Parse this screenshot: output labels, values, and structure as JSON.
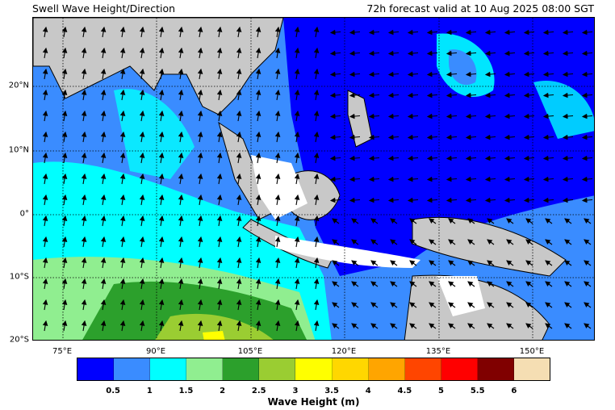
{
  "title": "Swell Wave Height/Direction",
  "valid_time": "72h forecast valid at 10 Aug 2025 08:00 SGT",
  "lat_labels": [
    "20°N",
    "10°N",
    "0°",
    "10°S",
    "20°S"
  ],
  "lon_labels": [
    "75°E",
    "90°E",
    "105°E",
    "120°E",
    "135°E",
    "150°E"
  ],
  "colorbar": {
    "colors": [
      "#0000ff",
      "#3a8cff",
      "#00ffff",
      "#90ee90",
      "#2ca02c",
      "#9acd32",
      "#ffff00",
      "#ffd700",
      "#ffa500",
      "#ff4500",
      "#ff0000",
      "#800000",
      "#f5deb3"
    ],
    "ticks": [
      "0.5",
      "1",
      "1.5",
      "2",
      "2.5",
      "3",
      "3.5",
      "4",
      "4.5",
      "5",
      "5.5",
      "6"
    ],
    "label": "Wave Height (m)"
  },
  "colors": {
    "land": "#c8c8c8",
    "calm": "#ffffff"
  }
}
